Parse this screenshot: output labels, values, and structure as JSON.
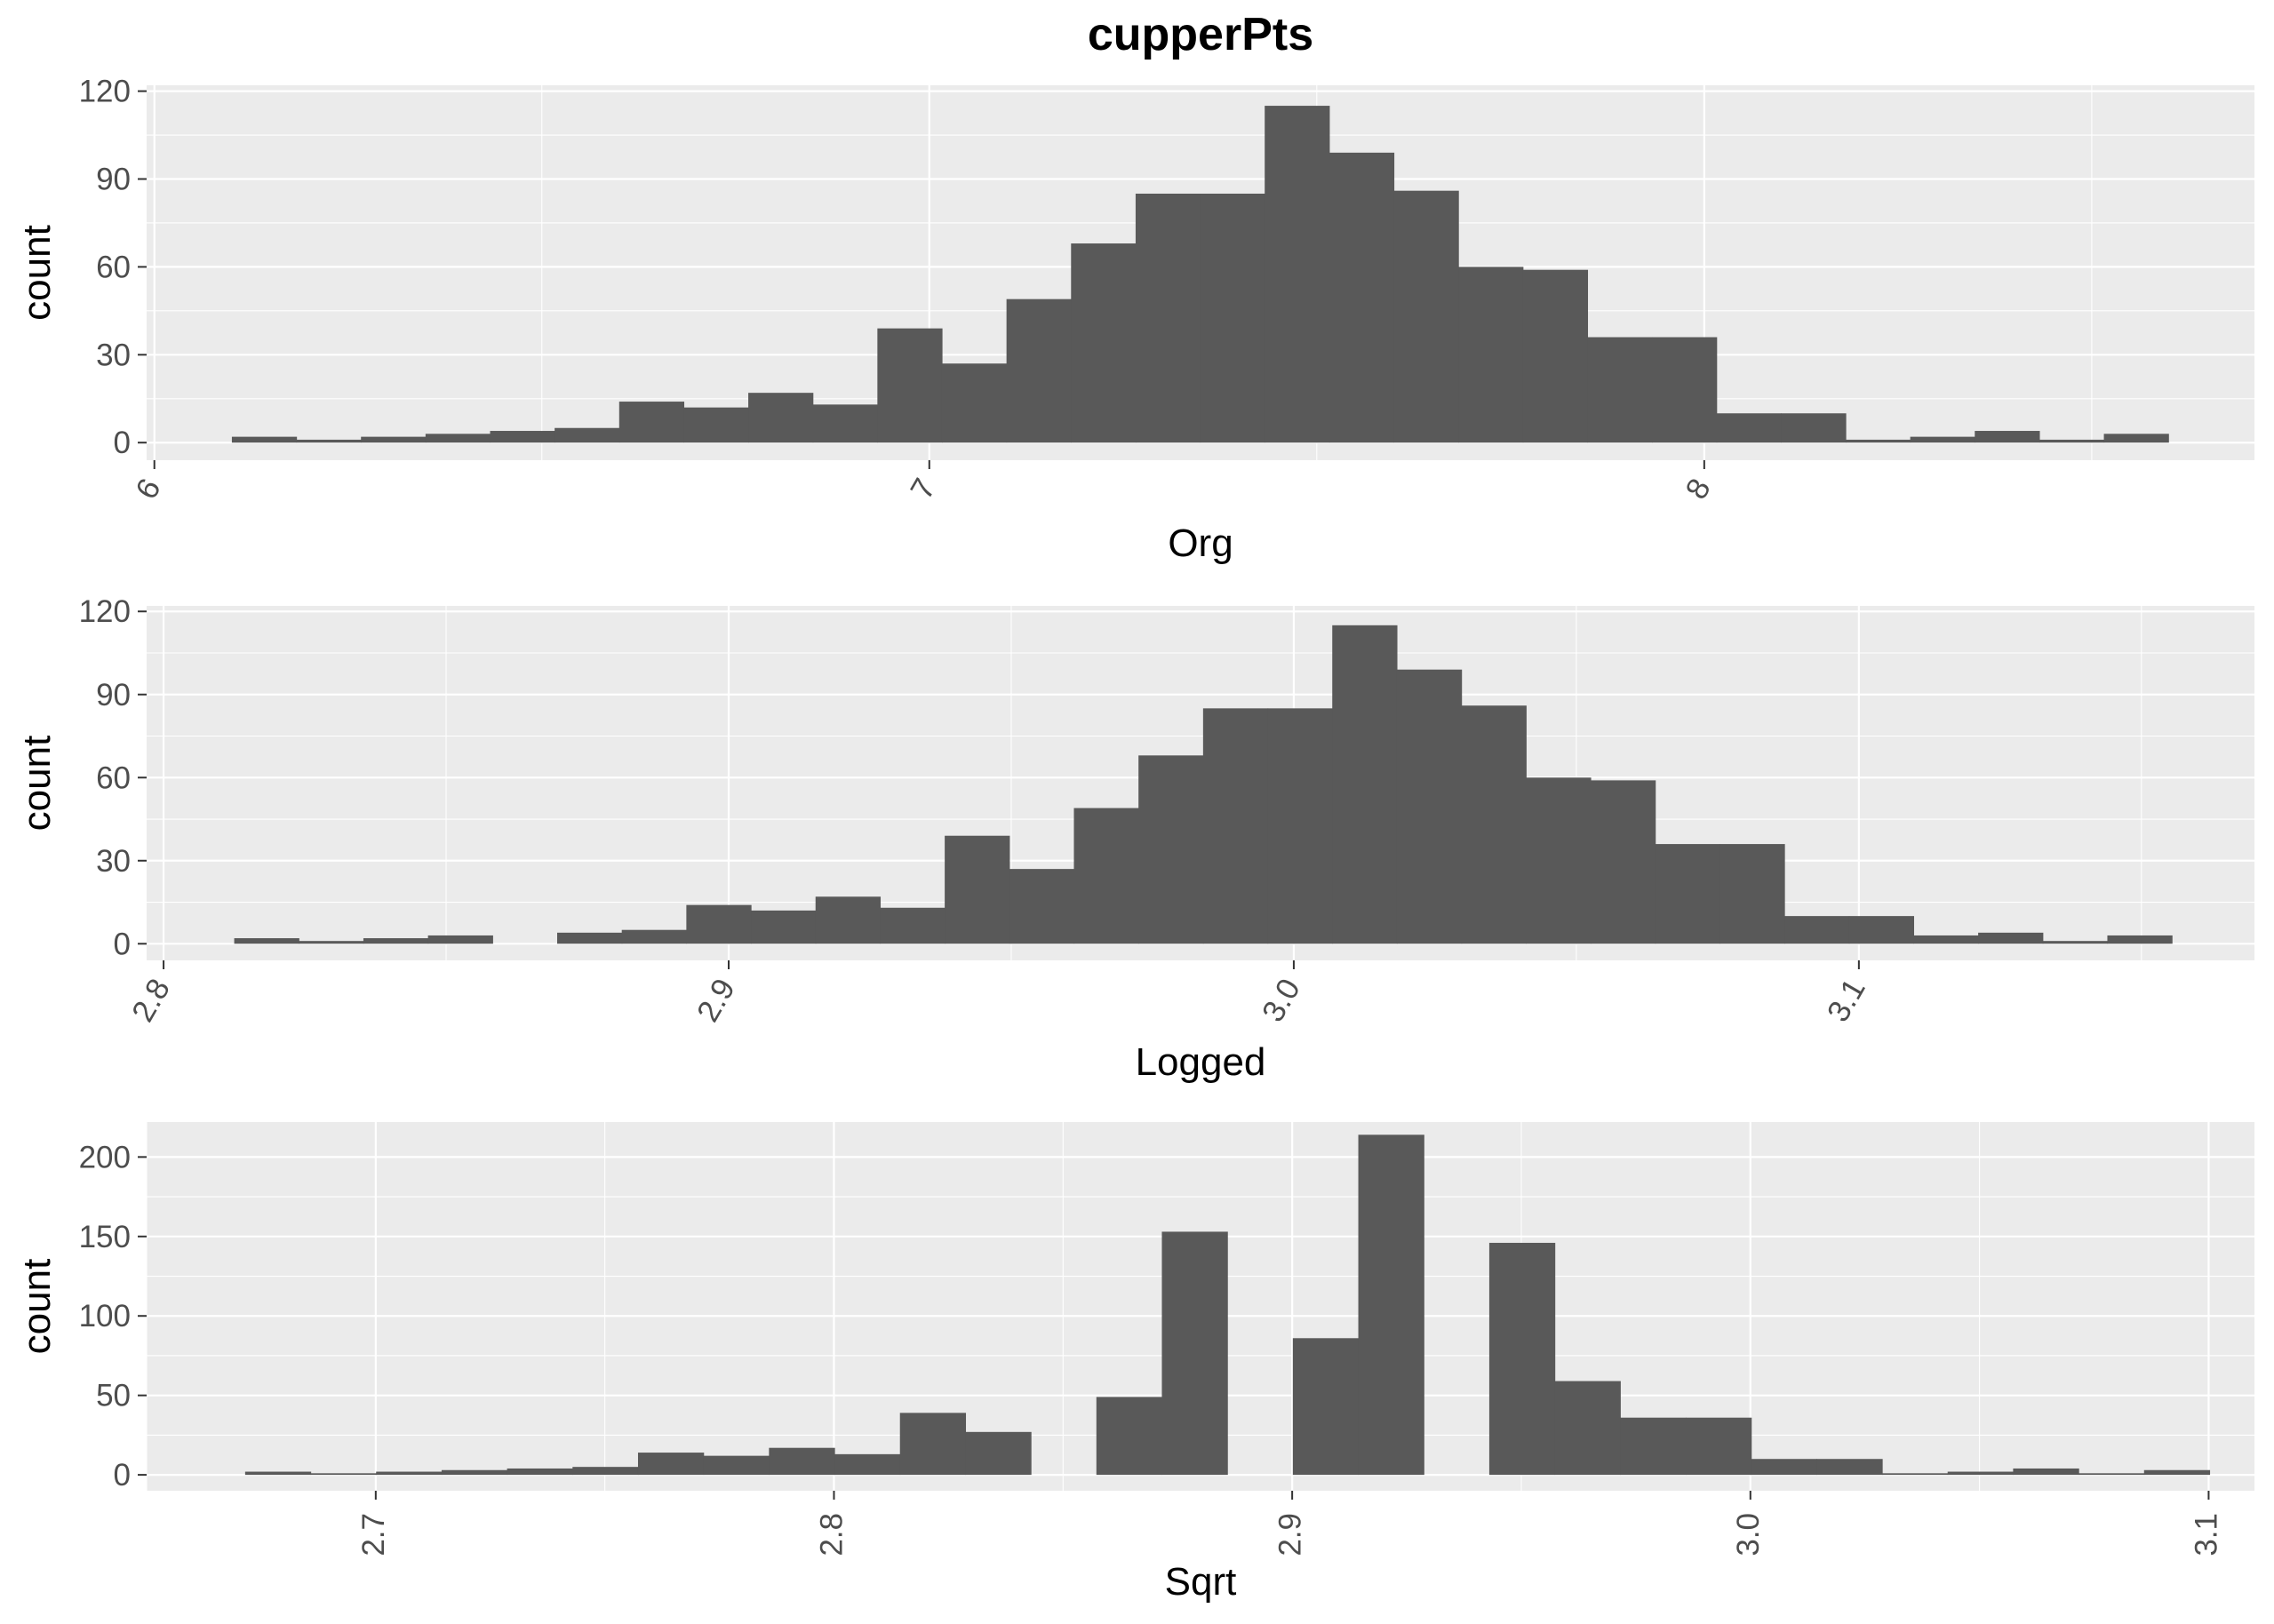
{
  "title": "cupperPts",
  "colors": {
    "panel": "#EBEBEB",
    "grid": "#FFFFFF",
    "bar": "#595959",
    "tick_text": "#4D4D4D"
  },
  "chart_data": [
    {
      "type": "bar",
      "xlabel": "Org",
      "ylabel": "count",
      "xlim": [
        5.99,
        8.71
      ],
      "ylim": [
        -6,
        122
      ],
      "x_ticks": [
        6,
        7,
        8
      ],
      "x_tick_labels": [
        "6",
        "7",
        "8"
      ],
      "y_ticks": [
        0,
        30,
        60,
        90,
        120
      ],
      "y_tick_labels": [
        "0",
        "30",
        "60",
        "90",
        "120"
      ],
      "bin_start": 6.1,
      "bin_width": 0.0833,
      "counts": [
        2,
        1,
        2,
        3,
        4,
        5,
        14,
        12,
        17,
        13,
        39,
        27,
        49,
        68,
        85,
        85,
        115,
        99,
        86,
        60,
        59,
        36,
        36,
        10,
        10,
        1,
        2,
        4,
        1,
        3
      ],
      "grid": true
    },
    {
      "type": "bar",
      "xlabel": "Logged",
      "ylabel": "count",
      "xlim": [
        2.797,
        3.17
      ],
      "ylim": [
        -6,
        122
      ],
      "x_ticks": [
        2.8,
        2.9,
        3.0,
        3.1
      ],
      "x_tick_labels": [
        "2.8",
        "2.9",
        "3.0",
        "3.1"
      ],
      "y_ticks": [
        0,
        30,
        60,
        90,
        120
      ],
      "y_tick_labels": [
        "0",
        "30",
        "60",
        "90",
        "120"
      ],
      "bin_start": 2.8125,
      "bin_width": 0.01143,
      "counts": [
        2,
        1,
        2,
        3,
        0,
        4,
        5,
        14,
        12,
        17,
        13,
        39,
        27,
        49,
        68,
        85,
        85,
        115,
        99,
        86,
        60,
        59,
        36,
        36,
        10,
        10,
        3,
        4,
        1,
        3
      ],
      "grid": true
    },
    {
      "type": "bar",
      "xlabel": "Sqrt",
      "ylabel": "count",
      "xlim": [
        2.65,
        3.11
      ],
      "ylim": [
        -10,
        222
      ],
      "x_ticks": [
        2.7,
        2.8,
        2.9,
        3.0,
        3.1
      ],
      "x_tick_labels": [
        "2.7",
        "2.8",
        "2.9",
        "3.0",
        "3.1"
      ],
      "y_ticks": [
        0,
        50,
        100,
        150,
        200
      ],
      "y_tick_labels": [
        "0",
        "50",
        "100",
        "150",
        "200"
      ],
      "bin_start": 2.6715,
      "bin_width": 0.01429,
      "counts": [
        2,
        1,
        2,
        3,
        4,
        5,
        14,
        12,
        17,
        13,
        39,
        27,
        0,
        49,
        153,
        0,
        86,
        214,
        0,
        146,
        59,
        36,
        36,
        10,
        10,
        1,
        2,
        4,
        1,
        3
      ],
      "grid": true
    }
  ]
}
